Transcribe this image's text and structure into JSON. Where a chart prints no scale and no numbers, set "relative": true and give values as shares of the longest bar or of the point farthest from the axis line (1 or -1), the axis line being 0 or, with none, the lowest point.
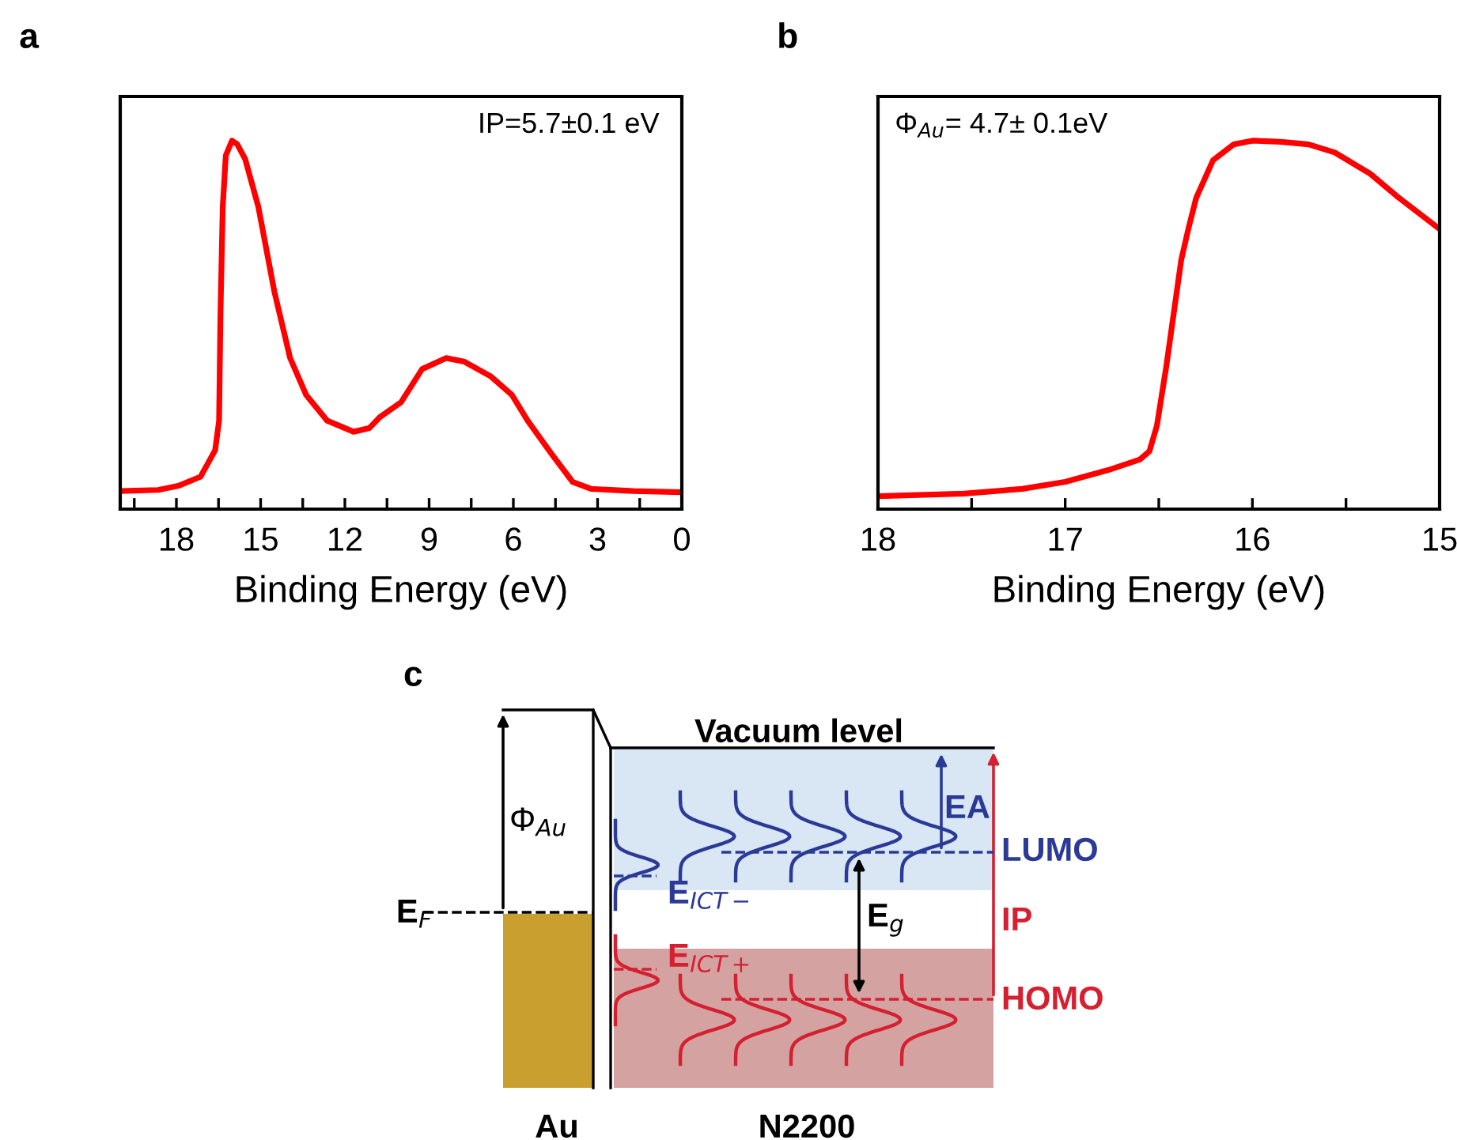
{
  "chart_data": [
    {
      "type": "line",
      "title": "a",
      "xlabel": "Binding Energy (eV)",
      "relative": true,
      "xlim": [
        20,
        0
      ],
      "xticks": [
        18,
        15,
        12,
        9,
        6,
        3,
        0,
        {
          "value": 19.5,
          "label": null
        },
        {
          "value": 16.5,
          "label": null
        },
        {
          "value": 13.5,
          "label": null
        },
        {
          "value": 10.5,
          "label": null
        },
        {
          "value": 7.5,
          "label": null
        },
        {
          "value": 4.5,
          "label": null
        },
        {
          "value": 1.5,
          "label": null
        }
      ],
      "tick_labels": "x",
      "annotations": [
        "IP=5.7±0.1 eV"
      ],
      "series": [
        {
          "color": "#ff0000",
          "x": [
            20,
            18.65,
            17.9,
            17.14,
            16.62,
            16.48,
            16.43,
            16.35,
            16.24,
            16.02,
            15.83,
            15.55,
            15.08,
            14.51,
            13.95,
            13.38,
            12.63,
            11.69,
            11.13,
            10.75,
            10.0,
            9.25,
            8.4,
            7.74,
            6.8,
            6.05,
            5.49,
            4.64,
            3.89,
            3.23,
            1.73,
            0
          ],
          "values": [
            0.049,
            0.052,
            0.064,
            0.088,
            0.16,
            0.24,
            0.53,
            0.82,
            0.96,
            1.0,
            0.99,
            0.95,
            0.82,
            0.59,
            0.41,
            0.31,
            0.24,
            0.21,
            0.22,
            0.25,
            0.29,
            0.38,
            0.41,
            0.4,
            0.36,
            0.31,
            0.24,
            0.15,
            0.074,
            0.055,
            0.049,
            0.046
          ]
        }
      ]
    },
    {
      "type": "line",
      "title": "b",
      "xlabel": "Binding Energy (eV)",
      "relative": true,
      "xlim": [
        18,
        15
      ],
      "xticks": [
        18,
        17,
        16,
        15,
        {
          "value": 17.5,
          "label": null
        },
        {
          "value": 16.5,
          "label": null
        },
        {
          "value": 15.5,
          "label": null
        }
      ],
      "tick_labels": "x",
      "annotations": [
        "Φ$_{Au}$= 4.7± 0.1eV"
      ],
      "series": [
        {
          "color": "#ff0000",
          "x": [
            18,
            17.54,
            17.23,
            17.0,
            16.77,
            16.6,
            16.55,
            16.51,
            16.46,
            16.42,
            16.38,
            16.34,
            16.3,
            16.21,
            16.1,
            16.0,
            15.85,
            15.7,
            15.56,
            15.37,
            15.23,
            15.0
          ],
          "values": [
            0.035,
            0.042,
            0.055,
            0.074,
            0.106,
            0.135,
            0.157,
            0.227,
            0.387,
            0.532,
            0.677,
            0.765,
            0.845,
            0.947,
            0.99,
            1.0,
            0.997,
            0.99,
            0.968,
            0.91,
            0.85,
            0.76
          ]
        }
      ]
    },
    {
      "type": "other",
      "title": "c",
      "annotations": [
        "Vacuum level",
        "Φ$_{Au}$",
        "E$_{F}$",
        "E$_{ICT−}$",
        "E$_{ICT+}$",
        "E$_{g}$",
        "EA",
        "LUMO",
        "IP",
        "HOMO",
        "Au",
        "N2200"
      ]
    }
  ]
}
